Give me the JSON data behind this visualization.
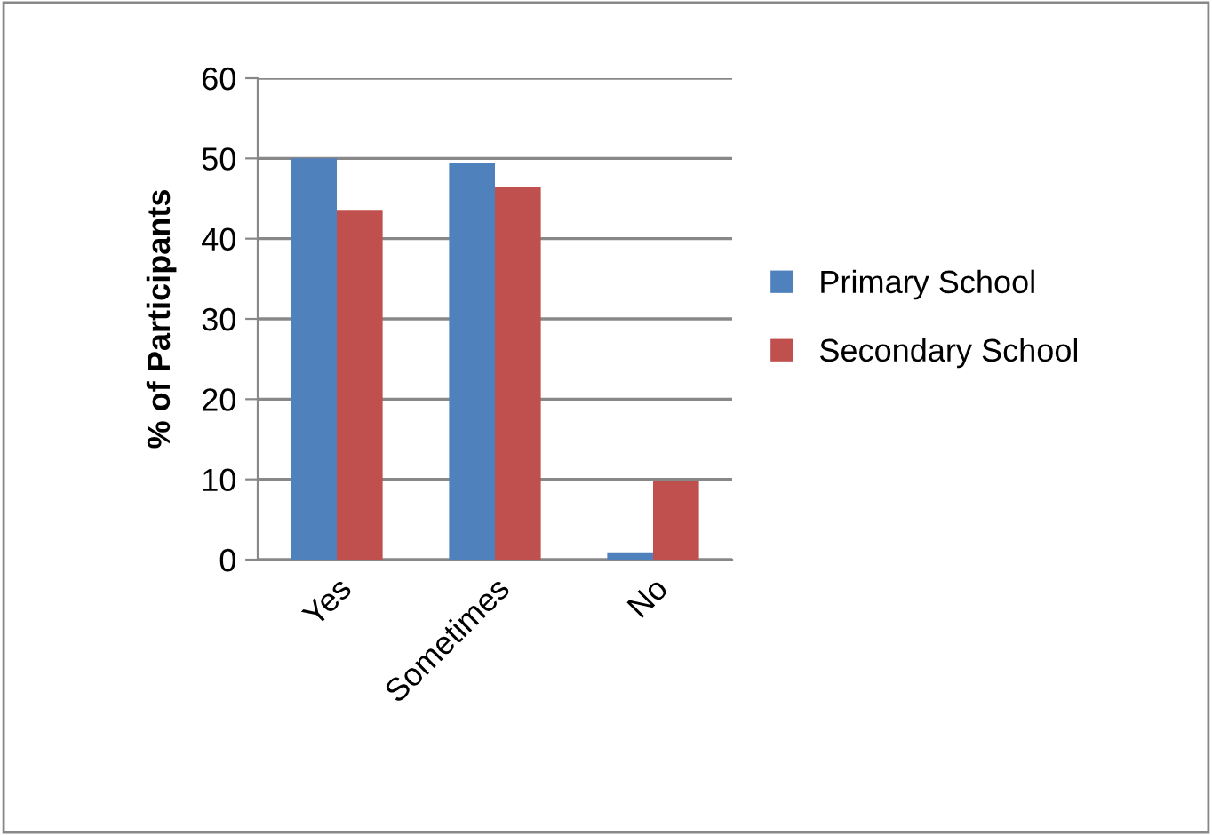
{
  "chart_data": {
    "type": "bar",
    "ylabel": "% of Participants",
    "categories": [
      "Yes",
      "Sometimes",
      "No"
    ],
    "series": [
      {
        "name": "Primary School",
        "color": "#4f81bd",
        "values": [
          50,
          49.4,
          0.9
        ]
      },
      {
        "name": "Secondary School",
        "color": "#c0504d",
        "values": [
          43.6,
          46.4,
          9.8
        ]
      }
    ],
    "ylim": [
      0,
      60
    ],
    "yticks": [
      0,
      10,
      20,
      30,
      40,
      50,
      60
    ],
    "grid": "y",
    "legend": "right"
  }
}
